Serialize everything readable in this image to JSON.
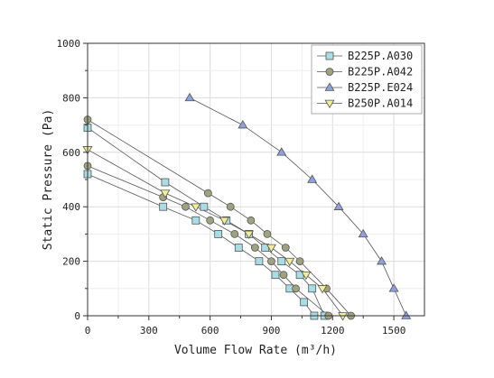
{
  "chart_data": {
    "type": "scatter",
    "xlabel": "Volume Flow Rate (m³/h)",
    "ylabel": "Static Pressure (Pa)",
    "xlim": [
      0,
      1650
    ],
    "ylim": [
      0,
      1000
    ],
    "xticks": [
      0,
      300,
      600,
      900,
      1200,
      1500
    ],
    "yticks": [
      0,
      200,
      400,
      600,
      800,
      1000
    ],
    "grid": true,
    "legend_position": "top-right",
    "series": [
      {
        "name": "B225P.A030",
        "marker": "square",
        "color": "#a8dde6",
        "groups": [
          [
            [
              0,
              520
            ],
            [
              370,
              400
            ],
            [
              530,
              350
            ],
            [
              640,
              300
            ],
            [
              740,
              250
            ],
            [
              840,
              200
            ],
            [
              920,
              150
            ],
            [
              990,
              100
            ],
            [
              1060,
              50
            ],
            [
              1110,
              0
            ]
          ],
          [
            [
              0,
              690
            ],
            [
              380,
              490
            ],
            [
              570,
              400
            ],
            [
              680,
              350
            ],
            [
              790,
              300
            ],
            [
              870,
              250
            ],
            [
              950,
              200
            ],
            [
              1040,
              150
            ],
            [
              1100,
              100
            ],
            [
              1160,
              0
            ]
          ]
        ]
      },
      {
        "name": "B225P.A042",
        "marker": "circle",
        "color": "#9fa37d",
        "groups": [
          [
            [
              0,
              550
            ],
            [
              370,
              435
            ],
            [
              480,
              400
            ],
            [
              600,
              350
            ],
            [
              720,
              300
            ],
            [
              820,
              250
            ],
            [
              900,
              200
            ],
            [
              960,
              150
            ],
            [
              1020,
              100
            ],
            [
              1180,
              0
            ]
          ],
          [
            [
              0,
              720
            ],
            [
              590,
              450
            ],
            [
              700,
              400
            ],
            [
              800,
              350
            ],
            [
              880,
              300
            ],
            [
              970,
              250
            ],
            [
              1040,
              200
            ],
            [
              1170,
              100
            ],
            [
              1290,
              0
            ]
          ]
        ]
      },
      {
        "name": "B225P.E024",
        "marker": "triangle-up",
        "color": "#8ea1dc",
        "groups": [
          [
            [
              500,
              800
            ],
            [
              760,
              700
            ],
            [
              950,
              600
            ],
            [
              1100,
              500
            ],
            [
              1230,
              400
            ],
            [
              1350,
              300
            ],
            [
              1440,
              200
            ],
            [
              1500,
              100
            ],
            [
              1560,
              0
            ]
          ]
        ]
      },
      {
        "name": "B250P.A014",
        "marker": "triangle-down",
        "color": "#f2ed97",
        "groups": [
          [
            [
              0,
              610
            ],
            [
              380,
              450
            ],
            [
              530,
              400
            ],
            [
              670,
              350
            ],
            [
              790,
              300
            ],
            [
              900,
              250
            ],
            [
              990,
              200
            ],
            [
              1070,
              150
            ],
            [
              1150,
              100
            ],
            [
              1250,
              0
            ]
          ]
        ]
      }
    ]
  }
}
